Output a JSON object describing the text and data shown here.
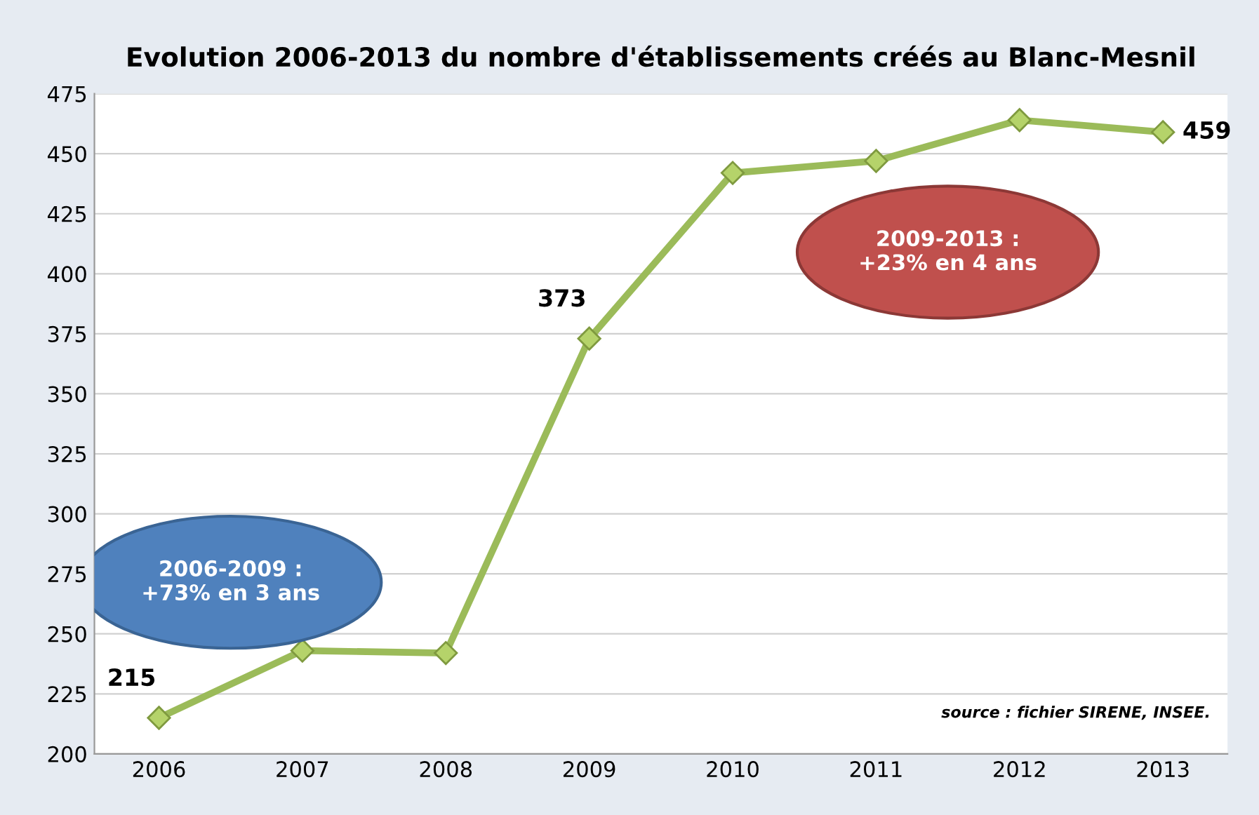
{
  "chart_data": {
    "type": "line",
    "title": "Evolution 2006-2013 du nombre d'établissements créés au Blanc-Mesnil",
    "categories": [
      "2006",
      "2007",
      "2008",
      "2009",
      "2010",
      "2011",
      "2012",
      "2013"
    ],
    "series": [
      {
        "color": "#9bbb59",
        "values": [
          215,
          243,
          242,
          373,
          442,
          447,
          464,
          459
        ],
        "value_labels": [
          "215",
          null,
          null,
          "373",
          null,
          null,
          null,
          "459"
        ]
      }
    ],
    "ylim": [
      200,
      475
    ],
    "yticks": [
      200,
      225,
      250,
      275,
      300,
      325,
      350,
      375,
      400,
      425,
      450,
      475
    ],
    "grid": "y",
    "marker": "diamond",
    "line_style": "solid",
    "legend": false,
    "annotations": [
      "2006-2009 :\n+73% en 3 ans",
      "2009-2013 :\n+23% en 4 ans",
      "source : fichier SIRENE, INSEE."
    ]
  }
}
